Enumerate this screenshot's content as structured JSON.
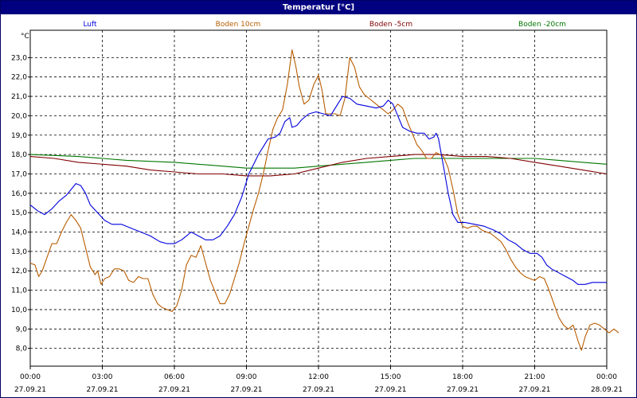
{
  "title": "Temperatur [°C]",
  "chart_data": {
    "type": "line",
    "ylabel": "°C",
    "ylim": [
      7.0,
      24.0
    ],
    "y_ticks": [
      8,
      9,
      10,
      11,
      12,
      13,
      14,
      15,
      16,
      17,
      18,
      19,
      20,
      21,
      22,
      23
    ],
    "y_tick_labels": [
      "8,0",
      "9,0",
      "10,0",
      "11,0",
      "12,0",
      "13,0",
      "14,0",
      "15,0",
      "16,0",
      "17,0",
      "18,0",
      "19,0",
      "20,0",
      "21,0",
      "22,0",
      "23,0"
    ],
    "xlim": [
      0,
      24
    ],
    "x_ticks": [
      {
        "t": 0,
        "time": "00:00",
        "date": "27.09.21"
      },
      {
        "t": 3,
        "time": "03:00",
        "date": "27.09.21"
      },
      {
        "t": 6,
        "time": "06:00",
        "date": "27.09.21"
      },
      {
        "t": 9,
        "time": "09:00",
        "date": "27.09.21"
      },
      {
        "t": 12,
        "time": "12:00",
        "date": "27.09.21"
      },
      {
        "t": 15,
        "time": "15:00",
        "date": "27.09.21"
      },
      {
        "t": 18,
        "time": "18:00",
        "date": "27.09.21"
      },
      {
        "t": 21,
        "time": "21:00",
        "date": "27.09.21"
      },
      {
        "t": 24,
        "time": "00:00",
        "date": "28.09.21"
      }
    ],
    "grid": true,
    "legend_position": "top",
    "series": [
      {
        "name": "Luft",
        "color": "#0000dd",
        "points": [
          [
            0,
            15.4
          ],
          [
            0.3,
            15.1
          ],
          [
            0.6,
            14.9
          ],
          [
            0.9,
            15.2
          ],
          [
            1.2,
            15.6
          ],
          [
            1.5,
            15.9
          ],
          [
            1.7,
            16.2
          ],
          [
            1.9,
            16.5
          ],
          [
            2.1,
            16.4
          ],
          [
            2.3,
            16.0
          ],
          [
            2.5,
            15.4
          ],
          [
            2.8,
            15.0
          ],
          [
            3.1,
            14.6
          ],
          [
            3.4,
            14.4
          ],
          [
            3.8,
            14.4
          ],
          [
            4.2,
            14.2
          ],
          [
            4.6,
            14.0
          ],
          [
            5.0,
            13.8
          ],
          [
            5.4,
            13.5
          ],
          [
            5.7,
            13.4
          ],
          [
            6.0,
            13.4
          ],
          [
            6.3,
            13.6
          ],
          [
            6.5,
            13.8
          ],
          [
            6.7,
            14.0
          ],
          [
            7.0,
            13.8
          ],
          [
            7.3,
            13.6
          ],
          [
            7.6,
            13.6
          ],
          [
            7.9,
            13.8
          ],
          [
            8.2,
            14.3
          ],
          [
            8.5,
            14.9
          ],
          [
            8.8,
            15.8
          ],
          [
            9.1,
            17.0
          ],
          [
            9.3,
            17.5
          ],
          [
            9.5,
            18.0
          ],
          [
            9.7,
            18.4
          ],
          [
            9.9,
            18.8
          ],
          [
            10.2,
            18.9
          ],
          [
            10.4,
            19.1
          ],
          [
            10.6,
            19.7
          ],
          [
            10.8,
            19.9
          ],
          [
            10.9,
            19.4
          ],
          [
            11.1,
            19.5
          ],
          [
            11.3,
            19.8
          ],
          [
            11.6,
            20.1
          ],
          [
            11.9,
            20.2
          ],
          [
            12.2,
            20.1
          ],
          [
            12.5,
            20.0
          ],
          [
            12.8,
            20.6
          ],
          [
            13.0,
            21.0
          ],
          [
            13.3,
            20.9
          ],
          [
            13.6,
            20.6
          ],
          [
            14.0,
            20.5
          ],
          [
            14.4,
            20.4
          ],
          [
            14.7,
            20.5
          ],
          [
            14.9,
            20.8
          ],
          [
            15.1,
            20.6
          ],
          [
            15.3,
            20.0
          ],
          [
            15.5,
            19.4
          ],
          [
            15.8,
            19.2
          ],
          [
            16.1,
            19.1
          ],
          [
            16.4,
            19.1
          ],
          [
            16.6,
            18.8
          ],
          [
            16.8,
            18.9
          ],
          [
            16.9,
            19.1
          ],
          [
            17.0,
            18.8
          ],
          [
            17.2,
            17.4
          ],
          [
            17.4,
            16.0
          ],
          [
            17.6,
            14.9
          ],
          [
            17.8,
            14.5
          ],
          [
            18.1,
            14.5
          ],
          [
            18.5,
            14.4
          ],
          [
            18.9,
            14.3
          ],
          [
            19.3,
            14.1
          ],
          [
            19.6,
            13.9
          ],
          [
            19.9,
            13.6
          ],
          [
            20.2,
            13.4
          ],
          [
            20.5,
            13.1
          ],
          [
            20.8,
            12.9
          ],
          [
            21.1,
            12.9
          ],
          [
            21.3,
            12.7
          ],
          [
            21.5,
            12.3
          ],
          [
            21.7,
            12.1
          ],
          [
            22.0,
            11.9
          ],
          [
            22.3,
            11.7
          ],
          [
            22.6,
            11.5
          ],
          [
            22.8,
            11.3
          ],
          [
            23.1,
            11.3
          ],
          [
            23.4,
            11.4
          ],
          [
            24.0,
            11.4
          ]
        ]
      },
      {
        "name": "Boden 10cm",
        "color": "#b85c00",
        "points": [
          [
            0,
            12.4
          ],
          [
            0.2,
            12.3
          ],
          [
            0.35,
            11.7
          ],
          [
            0.5,
            12.0
          ],
          [
            0.7,
            12.7
          ],
          [
            0.9,
            13.4
          ],
          [
            1.1,
            13.4
          ],
          [
            1.3,
            14.0
          ],
          [
            1.5,
            14.5
          ],
          [
            1.7,
            14.9
          ],
          [
            1.9,
            14.6
          ],
          [
            2.1,
            14.2
          ],
          [
            2.3,
            13.2
          ],
          [
            2.5,
            12.2
          ],
          [
            2.7,
            11.8
          ],
          [
            2.8,
            12.0
          ],
          [
            2.95,
            11.3
          ],
          [
            3.1,
            11.6
          ],
          [
            3.3,
            11.7
          ],
          [
            3.5,
            12.1
          ],
          [
            3.7,
            12.1
          ],
          [
            3.9,
            12.0
          ],
          [
            4.1,
            11.5
          ],
          [
            4.3,
            11.4
          ],
          [
            4.5,
            11.7
          ],
          [
            4.7,
            11.6
          ],
          [
            4.9,
            11.6
          ],
          [
            5.1,
            10.8
          ],
          [
            5.3,
            10.3
          ],
          [
            5.5,
            10.1
          ],
          [
            5.7,
            10.0
          ],
          [
            5.9,
            9.9
          ],
          [
            6.1,
            10.2
          ],
          [
            6.3,
            11.0
          ],
          [
            6.5,
            12.3
          ],
          [
            6.7,
            12.8
          ],
          [
            6.9,
            12.7
          ],
          [
            7.1,
            13.3
          ],
          [
            7.3,
            12.4
          ],
          [
            7.5,
            11.5
          ],
          [
            7.7,
            10.9
          ],
          [
            7.9,
            10.3
          ],
          [
            8.1,
            10.3
          ],
          [
            8.3,
            10.8
          ],
          [
            8.5,
            11.6
          ],
          [
            8.7,
            12.4
          ],
          [
            8.9,
            13.4
          ],
          [
            9.1,
            14.3
          ],
          [
            9.3,
            15.2
          ],
          [
            9.5,
            16.0
          ],
          [
            9.7,
            17.0
          ],
          [
            9.9,
            18.2
          ],
          [
            10.1,
            19.3
          ],
          [
            10.3,
            19.9
          ],
          [
            10.5,
            20.3
          ],
          [
            10.7,
            21.6
          ],
          [
            10.9,
            23.4
          ],
          [
            11.05,
            22.6
          ],
          [
            11.2,
            21.5
          ],
          [
            11.4,
            20.6
          ],
          [
            11.6,
            20.8
          ],
          [
            11.8,
            21.6
          ],
          [
            12.0,
            22.1
          ],
          [
            12.15,
            21.3
          ],
          [
            12.3,
            20.1
          ],
          [
            12.5,
            20.1
          ],
          [
            12.7,
            20.1
          ],
          [
            12.9,
            20.0
          ],
          [
            13.1,
            20.9
          ],
          [
            13.3,
            23.0
          ],
          [
            13.5,
            22.5
          ],
          [
            13.7,
            21.5
          ],
          [
            13.9,
            21.1
          ],
          [
            14.1,
            20.9
          ],
          [
            14.3,
            20.7
          ],
          [
            14.5,
            20.5
          ],
          [
            14.7,
            20.3
          ],
          [
            14.9,
            20.1
          ],
          [
            15.1,
            20.3
          ],
          [
            15.3,
            20.6
          ],
          [
            15.5,
            20.4
          ],
          [
            15.7,
            19.7
          ],
          [
            15.9,
            19.1
          ],
          [
            16.1,
            18.5
          ],
          [
            16.3,
            18.2
          ],
          [
            16.5,
            17.8
          ],
          [
            16.7,
            17.8
          ],
          [
            16.9,
            18.1
          ],
          [
            17.05,
            18.0
          ],
          [
            17.2,
            17.9
          ],
          [
            17.4,
            17.3
          ],
          [
            17.6,
            16.2
          ],
          [
            17.8,
            14.9
          ],
          [
            18.0,
            14.3
          ],
          [
            18.2,
            14.2
          ],
          [
            18.4,
            14.3
          ],
          [
            18.6,
            14.3
          ],
          [
            18.8,
            14.1
          ],
          [
            19.0,
            14.0
          ],
          [
            19.2,
            13.9
          ],
          [
            19.4,
            13.7
          ],
          [
            19.6,
            13.5
          ],
          [
            19.8,
            13.1
          ],
          [
            20.0,
            12.6
          ],
          [
            20.2,
            12.2
          ],
          [
            20.4,
            11.9
          ],
          [
            20.6,
            11.7
          ],
          [
            20.8,
            11.6
          ],
          [
            21.0,
            11.5
          ],
          [
            21.2,
            11.7
          ],
          [
            21.4,
            11.6
          ],
          [
            21.6,
            11.0
          ],
          [
            21.8,
            10.3
          ],
          [
            22.0,
            9.6
          ],
          [
            22.2,
            9.2
          ],
          [
            22.4,
            9.0
          ],
          [
            22.6,
            9.2
          ],
          [
            22.8,
            8.4
          ],
          [
            22.95,
            7.9
          ],
          [
            23.1,
            8.6
          ],
          [
            23.3,
            9.2
          ],
          [
            23.5,
            9.3
          ],
          [
            23.7,
            9.2
          ],
          [
            23.9,
            9.0
          ],
          [
            24.1,
            8.8
          ],
          [
            24.3,
            9.0
          ],
          [
            24.5,
            8.8
          ]
        ]
      },
      {
        "name": "Boden -5cm",
        "color": "#800000",
        "points": [
          [
            0,
            17.9
          ],
          [
            1.0,
            17.8
          ],
          [
            2.0,
            17.6
          ],
          [
            3.0,
            17.5
          ],
          [
            4.0,
            17.4
          ],
          [
            5.0,
            17.2
          ],
          [
            6.0,
            17.1
          ],
          [
            7.0,
            17.0
          ],
          [
            8.0,
            17.0
          ],
          [
            9.0,
            16.9
          ],
          [
            10.0,
            16.9
          ],
          [
            11.0,
            17.0
          ],
          [
            12.0,
            17.3
          ],
          [
            13.0,
            17.6
          ],
          [
            14.0,
            17.8
          ],
          [
            15.0,
            17.9
          ],
          [
            16.0,
            18.0
          ],
          [
            17.0,
            18.0
          ],
          [
            18.0,
            17.9
          ],
          [
            19.0,
            17.9
          ],
          [
            20.0,
            17.8
          ],
          [
            21.0,
            17.6
          ],
          [
            22.0,
            17.4
          ],
          [
            23.0,
            17.2
          ],
          [
            24.0,
            17.0
          ]
        ]
      },
      {
        "name": "Boden -20cm",
        "color": "#007700",
        "points": [
          [
            0,
            18.0
          ],
          [
            2.0,
            17.9
          ],
          [
            4.0,
            17.7
          ],
          [
            6.0,
            17.6
          ],
          [
            8.0,
            17.4
          ],
          [
            9.0,
            17.3
          ],
          [
            10.0,
            17.3
          ],
          [
            11.0,
            17.3
          ],
          [
            12.0,
            17.4
          ],
          [
            13.0,
            17.5
          ],
          [
            14.0,
            17.6
          ],
          [
            15.0,
            17.7
          ],
          [
            16.0,
            17.8
          ],
          [
            17.0,
            17.8
          ],
          [
            18.0,
            17.8
          ],
          [
            19.0,
            17.8
          ],
          [
            20.0,
            17.8
          ],
          [
            21.0,
            17.8
          ],
          [
            22.0,
            17.7
          ],
          [
            23.0,
            17.6
          ],
          [
            24.0,
            17.5
          ]
        ]
      }
    ]
  }
}
